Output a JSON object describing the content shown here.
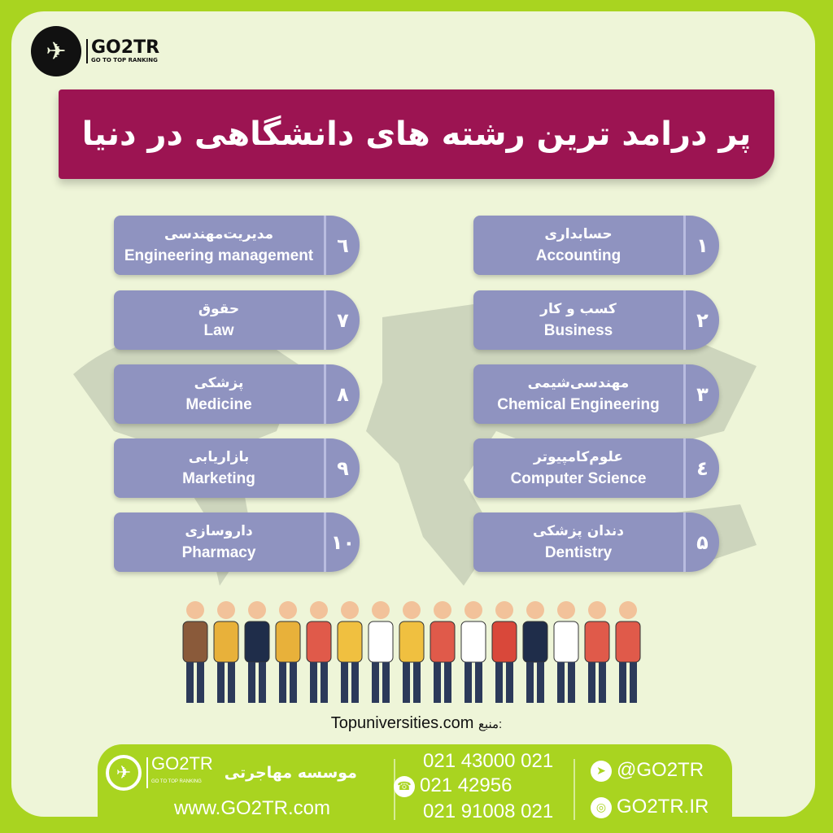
{
  "brand": {
    "name": "GO2TR",
    "tagline": "GO TO TOP RANKING"
  },
  "title": "پر درامد ترین رشته های دانشگاهی در دنیا",
  "colors": {
    "background": "#a9d420",
    "panel": "#eef5d8",
    "banner": "#9c1452",
    "card": "#8f93c0"
  },
  "majors": [
    {
      "num": "۱",
      "fa": "حسابداری",
      "en": "Accounting"
    },
    {
      "num": "۲",
      "fa": "کسب و کار",
      "en": "Business"
    },
    {
      "num": "۳",
      "fa": "مهندسی‌شیمی",
      "en": "Chemical Engineering"
    },
    {
      "num": "٤",
      "fa": "علوم‌کامپیوتر",
      "en": "Computer Science"
    },
    {
      "num": "۵",
      "fa": "دندان پزشکی",
      "en": "Dentistry"
    },
    {
      "num": "٦",
      "fa": "مدیریت‌مهندسی",
      "en": "Engineering management"
    },
    {
      "num": "۷",
      "fa": "حقوق",
      "en": "Law"
    },
    {
      "num": "۸",
      "fa": "پزشکی",
      "en": "Medicine"
    },
    {
      "num": "۹",
      "fa": "بازاریابی",
      "en": "Marketing"
    },
    {
      "num": "۱۰",
      "fa": "داروسازی",
      "en": "Pharmacy"
    }
  ],
  "source": {
    "label": "منبع:",
    "value": "Topuniversities.com"
  },
  "footer": {
    "institute": "موسسه مهاجرتی",
    "website": "www.GO2TR.com",
    "phones": [
      "021 43000 021",
      "021 42956",
      "021 91008 021"
    ],
    "telegram": "@GO2TR",
    "instagram": "GO2TR.IR",
    "icons": [
      "phone-icon",
      "telegram-icon",
      "instagram-icon"
    ]
  }
}
